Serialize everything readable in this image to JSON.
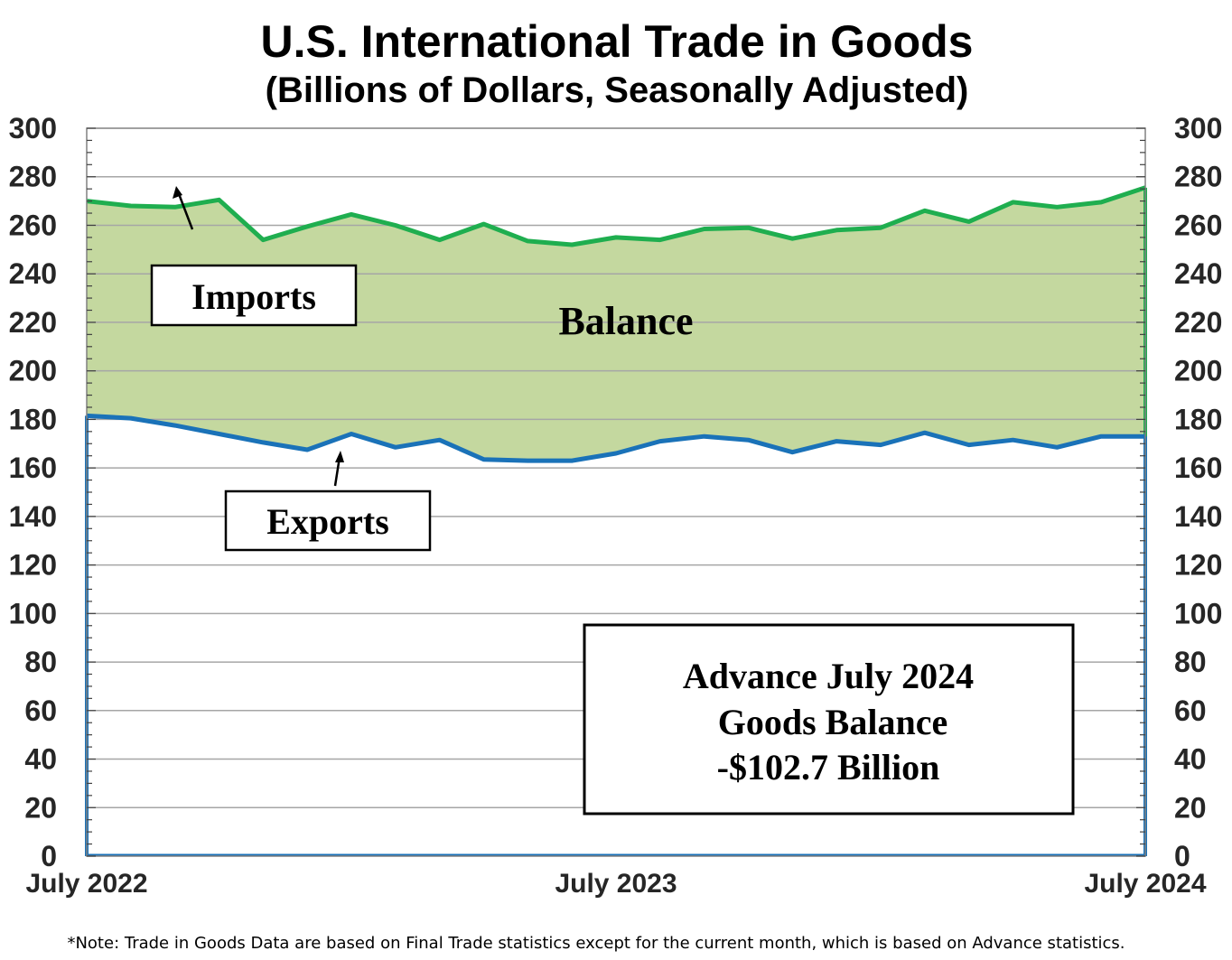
{
  "chart_data": {
    "type": "area",
    "title": "U.S. International Trade in Goods",
    "subtitle": "(Billions of Dollars, Seasonally Adjusted)",
    "ylim": [
      0,
      300
    ],
    "y_ticks": [
      "0",
      "20",
      "40",
      "60",
      "80",
      "100",
      "120",
      "140",
      "160",
      "180",
      "200",
      "220",
      "240",
      "260",
      "280",
      "300"
    ],
    "x_tick_labels": [
      "July 2022",
      "July 2023",
      "July 2024"
    ],
    "x_tick_index": [
      0,
      12,
      24
    ],
    "grid": true,
    "series": [
      {
        "name": "Imports",
        "color": "#1fae4f",
        "values": [
          270.0,
          268.0,
          267.5,
          270.5,
          254.0,
          259.5,
          264.5,
          260.0,
          254.0,
          260.5,
          253.5,
          252.0,
          255.0,
          254.0,
          258.5,
          259.0,
          254.5,
          258.0,
          259.0,
          266.0,
          261.5,
          269.5,
          267.5,
          269.5,
          275.5
        ]
      },
      {
        "name": "Exports",
        "color": "#1a72b8",
        "values": [
          181.5,
          180.5,
          177.5,
          174.0,
          170.5,
          167.5,
          174.0,
          168.5,
          171.5,
          163.5,
          163.0,
          163.0,
          166.0,
          171.0,
          173.0,
          171.5,
          166.5,
          171.0,
          169.5,
          174.5,
          169.5,
          171.5,
          168.5,
          173.0,
          173.0
        ]
      }
    ],
    "fill_label": "Balance",
    "fill_color": "#c4d89f",
    "annotations": {
      "imports_label": "Imports",
      "exports_label": "Exports",
      "balance_label": "Balance",
      "box_line1": "Advance July 2024",
      "box_line2": "Goods Balance",
      "box_line3": "-$102.7 Billion"
    },
    "note": "*Note: Trade in Goods Data are based on Final Trade statistics except for the current month, which is based on Advance statistics."
  }
}
